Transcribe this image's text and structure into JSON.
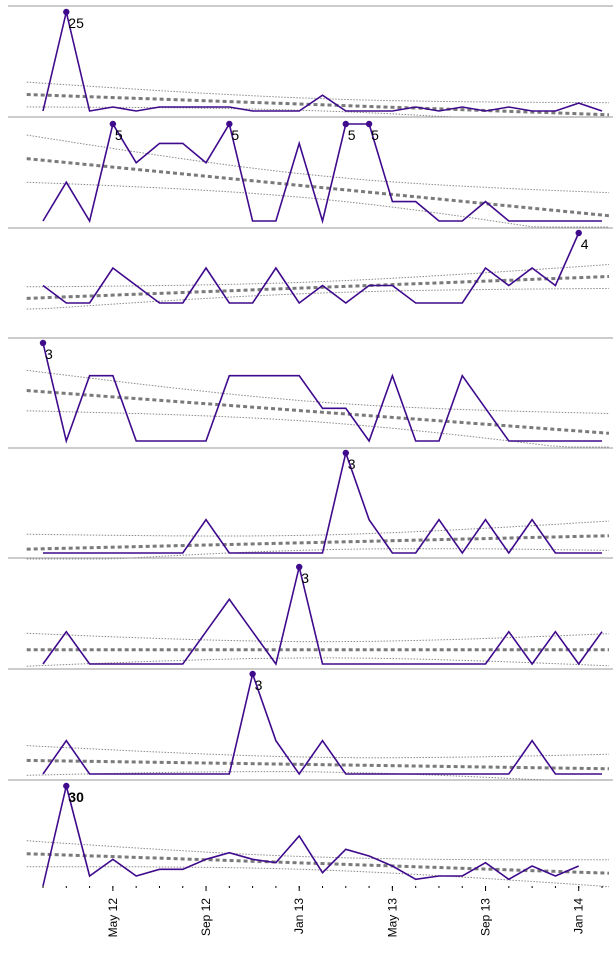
{
  "chart_data": {
    "type": "line",
    "title": "",
    "xlabel": "",
    "ylabel": "",
    "grid": false,
    "x": [
      "2012-02",
      "2012-03",
      "2012-04",
      "2012-05",
      "2012-06",
      "2012-07",
      "2012-08",
      "2012-09",
      "2012-10",
      "2012-11",
      "2012-12",
      "2013-01",
      "2013-02",
      "2013-03",
      "2013-04",
      "2013-05",
      "2013-06",
      "2013-07",
      "2013-08",
      "2013-09",
      "2013-10",
      "2013-11",
      "2013-12",
      "2014-01",
      "2014-02"
    ],
    "x_tick_labels": [
      {
        "date": "2012-05",
        "label": "May 12"
      },
      {
        "date": "2012-09",
        "label": "Sep 12"
      },
      {
        "date": "2013-01",
        "label": "Jan 13"
      },
      {
        "date": "2013-05",
        "label": "May 13"
      },
      {
        "date": "2013-09",
        "label": "Sep 13"
      },
      {
        "date": "2014-01",
        "label": "Jan 14"
      }
    ],
    "panels": [
      {
        "values": [
          0,
          25,
          0,
          1,
          0,
          1,
          1,
          1,
          1,
          0,
          0,
          0,
          4,
          0,
          0,
          0,
          1,
          0,
          1,
          0,
          1,
          0,
          0,
          2,
          0
        ],
        "peak": {
          "index": 1,
          "label": "25",
          "bold": false
        },
        "ymax": 25
      },
      {
        "values": [
          0,
          2,
          0,
          5,
          3,
          4,
          4,
          3,
          5,
          0,
          0,
          4,
          0,
          5,
          5,
          1,
          1,
          0,
          0,
          1,
          0,
          0,
          0,
          0,
          0
        ],
        "peak": [
          {
            "index": 3,
            "label": "5",
            "bold": false
          },
          {
            "index": 8,
            "label": "5",
            "bold": false
          },
          {
            "index": 13,
            "label": "5",
            "bold": false
          },
          {
            "index": 14,
            "label": "5",
            "bold": false
          }
        ],
        "ymax": 5
      },
      {
        "values": [
          1,
          0,
          0,
          2,
          1,
          0,
          0,
          2,
          0,
          0,
          2,
          0,
          1,
          0,
          1,
          1,
          0,
          0,
          0,
          2,
          1,
          2,
          1,
          4,
          null
        ],
        "peak": {
          "index": 23,
          "label": "4",
          "bold": false
        },
        "ymax": 4
      },
      {
        "values": [
          3,
          0,
          2,
          2,
          0,
          0,
          0,
          0,
          2,
          2,
          2,
          2,
          1,
          1,
          0,
          2,
          0,
          0,
          2,
          1,
          0,
          0,
          0,
          0,
          0
        ],
        "peak": {
          "index": 0,
          "label": "3",
          "bold": false
        },
        "ymax": 3
      },
      {
        "values": [
          0,
          0,
          0,
          0,
          0,
          0,
          0,
          1,
          0,
          0,
          0,
          0,
          0,
          3,
          1,
          0,
          0,
          1,
          0,
          1,
          0,
          1,
          0,
          0,
          0
        ],
        "peak": {
          "index": 13,
          "label": "3",
          "bold": false
        },
        "ymax": 3
      },
      {
        "values": [
          0,
          1,
          0,
          0,
          0,
          0,
          0,
          1,
          2,
          1,
          0,
          3,
          0,
          0,
          0,
          0,
          0,
          0,
          0,
          0,
          1,
          0,
          1,
          0,
          1
        ],
        "peak": {
          "index": 11,
          "label": "3",
          "bold": false
        },
        "ymax": 3
      },
      {
        "values": [
          0,
          1,
          0,
          0,
          0,
          0,
          0,
          0,
          0,
          3,
          1,
          0,
          1,
          0,
          0,
          0,
          0,
          0,
          0,
          0,
          0,
          1,
          0,
          0,
          0
        ],
        "peak": {
          "index": 9,
          "label": "3",
          "bold": false
        },
        "ymax": 3
      },
      {
        "values": [
          0,
          30,
          3,
          8,
          3,
          5,
          5,
          8,
          10,
          8,
          7,
          15,
          4,
          11,
          9,
          6,
          2,
          3,
          3,
          7,
          2,
          6,
          3,
          6,
          null
        ],
        "peak": {
          "index": 1,
          "label": "30",
          "bold": true
        },
        "ymax": 30
      }
    ]
  }
}
